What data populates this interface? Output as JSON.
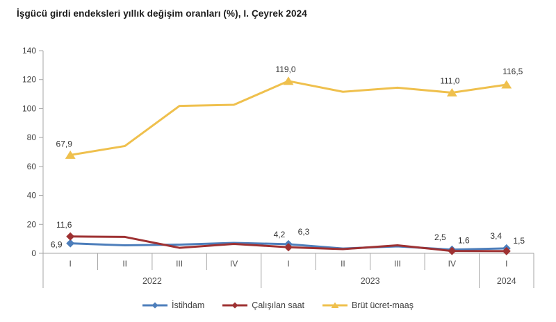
{
  "title": "İşgücü girdi endeksleri yıllık değişim oranları (%), I. Çeyrek 2024",
  "colors": {
    "istihdam": "#4D7EBB",
    "calisilan_saat": "#9E3132",
    "brut_ucret_maas": "#EFC04D",
    "axis_line": "#A6A6A6",
    "tick_text": "#3F3F3F",
    "annotation_text": "#333333"
  },
  "chart_data": {
    "type": "line",
    "title": "İşgücü girdi endeksleri yıllık değişim oranları (%), I. Çeyrek 2024",
    "xlabel": "",
    "ylabel": "",
    "ylim": [
      0,
      140
    ],
    "yticks": [
      0,
      20,
      40,
      60,
      80,
      100,
      120,
      140
    ],
    "grid": false,
    "legend_position": "bottom",
    "categories": [
      "I",
      "II",
      "III",
      "IV",
      "I",
      "II",
      "III",
      "IV",
      "I"
    ],
    "year_groups": [
      {
        "label": "2022",
        "span": 4
      },
      {
        "label": "2023",
        "span": 4
      },
      {
        "label": "2024",
        "span": 1
      }
    ],
    "series": [
      {
        "name": "İstihdam",
        "color": "#4D7EBB",
        "marker": "diamond",
        "values": [
          6.9,
          5.5,
          6.0,
          7.2,
          6.3,
          3.3,
          4.8,
          2.5,
          3.4
        ],
        "labels": [
          {
            "index": 0,
            "text": "6,9",
            "dx": -20,
            "dy": 6
          },
          {
            "index": 4,
            "text": "6,3",
            "dx": 22,
            "dy": -14
          },
          {
            "index": 7,
            "text": "2,5",
            "dx": -17,
            "dy": -14
          },
          {
            "index": 8,
            "text": "3,4",
            "dx": -15,
            "dy": -14
          }
        ]
      },
      {
        "name": "Çalışılan saat",
        "color": "#9E3132",
        "marker": "diamond",
        "values": [
          11.6,
          11.3,
          3.8,
          6.5,
          4.2,
          2.9,
          5.5,
          1.6,
          1.5
        ],
        "labels": [
          {
            "index": 0,
            "text": "11,6",
            "dx": -9,
            "dy": -13
          },
          {
            "index": 4,
            "text": "4,2",
            "dx": -13,
            "dy": -14
          },
          {
            "index": 7,
            "text": "1,6",
            "dx": 17,
            "dy": -11
          },
          {
            "index": 8,
            "text": "1,5",
            "dx": 18,
            "dy": -11
          }
        ]
      },
      {
        "name": "Brüt ücret-maaş",
        "color": "#EFC04D",
        "marker": "triangle",
        "values": [
          67.9,
          74.1,
          101.8,
          102.6,
          119.0,
          111.6,
          114.4,
          111.0,
          116.5
        ],
        "labels": [
          {
            "index": 0,
            "text": "67,9",
            "dx": -9,
            "dy": -12
          },
          {
            "index": 4,
            "text": "119,0",
            "dx": -4,
            "dy": -13
          },
          {
            "index": 7,
            "text": "111,0",
            "dx": -3,
            "dy": -13
          },
          {
            "index": 8,
            "text": "116,5",
            "dx": 9,
            "dy": -15
          }
        ]
      }
    ]
  },
  "legend": {
    "items": [
      "İstihdam",
      "Çalışılan saat",
      "Brüt ücret-maaş"
    ]
  }
}
